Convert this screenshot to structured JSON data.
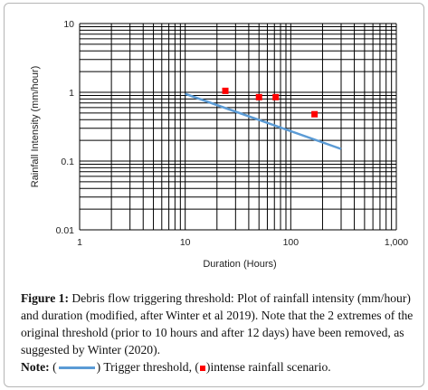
{
  "chart_data": {
    "type": "scatter",
    "xscale": "log",
    "yscale": "log",
    "xlim": [
      1,
      1000
    ],
    "ylim": [
      0.01,
      10
    ],
    "x_ticks": [
      "1",
      "10",
      "100",
      "1,000"
    ],
    "y_ticks": [
      "10",
      "1",
      "0.1",
      "0.01"
    ],
    "xlabel": "Duration (Hours)",
    "ylabel": "Rainfall Intensity (mm/hour)",
    "grid": true,
    "series": [
      {
        "kind": "line",
        "color": "#5b9bd5",
        "x": [
          10,
          300
        ],
        "y": [
          0.95,
          0.15
        ]
      },
      {
        "kind": "points",
        "marker": "square",
        "color": "#ff0000",
        "x": [
          24,
          50,
          72,
          168
        ],
        "y": [
          1.05,
          0.85,
          0.85,
          0.48
        ]
      }
    ]
  },
  "caption": {
    "figure_label": "Figure 1:",
    "text": " Debris flow triggering threshold: Plot of rainfall intensity (mm/hour) and duration (modified, after Winter et al 2019). Note that the 2 extremes of the original threshold (prior to 10 hours and after 12 days) have been removed, as suggested by Winter (2020).",
    "note_label": "Note:",
    "note_open": " (",
    "note_line_text": ") Trigger threshold, (",
    "note_point_text": ")intense rainfall scenario."
  }
}
